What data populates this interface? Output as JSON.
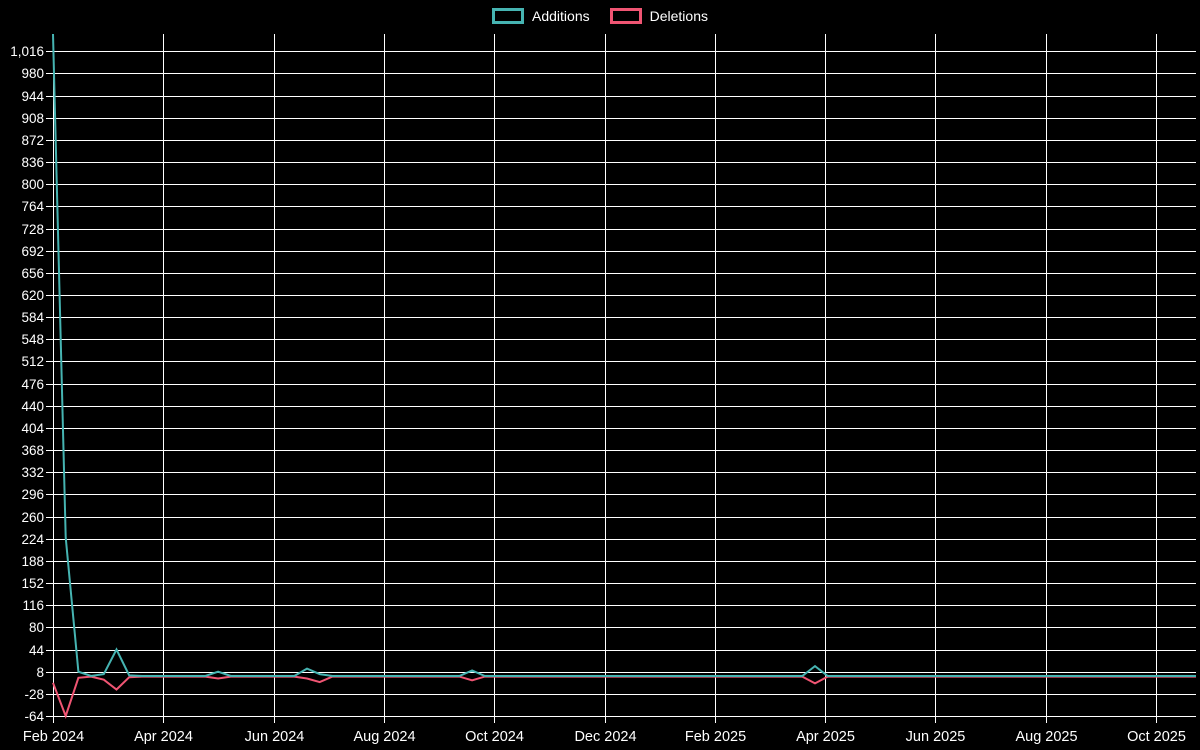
{
  "page": {
    "background": "#000000",
    "text_color": "#ffffff",
    "grid_color": "#ffffff"
  },
  "legend": {
    "position": "top-center",
    "items": [
      {
        "label": "Additions",
        "color": "#46b4b2"
      },
      {
        "label": "Deletions",
        "color": "#f05573"
      }
    ]
  },
  "chart_data": {
    "type": "line",
    "title": "",
    "xlabel": "",
    "ylabel": "",
    "grid": true,
    "legend_position": "top-center",
    "x_unit": "week",
    "x_axis": {
      "tick_labels": [
        "Feb 2024",
        "Apr 2024",
        "Jun 2024",
        "Aug 2024",
        "Oct 2024",
        "Dec 2024",
        "Feb 2025",
        "Apr 2025",
        "Jun 2025",
        "Aug 2025",
        "Oct 2025"
      ]
    },
    "y_axis": {
      "range": [
        -64,
        1044
      ],
      "tick_step": 36,
      "tick_values": [
        1016,
        980,
        944,
        908,
        872,
        836,
        800,
        764,
        728,
        692,
        656,
        620,
        584,
        548,
        512,
        476,
        440,
        404,
        368,
        332,
        296,
        260,
        224,
        188,
        152,
        116,
        80,
        44,
        8,
        -28,
        -64
      ],
      "tick_labels": [
        "1,016",
        "980",
        "944",
        "908",
        "872",
        "836",
        "800",
        "764",
        "728",
        "692",
        "656",
        "620",
        "584",
        "548",
        "512",
        "476",
        "440",
        "404",
        "368",
        "332",
        "296",
        "260",
        "224",
        "188",
        "152",
        "116",
        "80",
        "44",
        "8",
        "-28",
        "-64"
      ]
    },
    "series": [
      {
        "name": "Additions",
        "color": "#46b4b2",
        "values": [
          1044,
          226,
          8,
          1,
          4,
          44,
          2,
          1,
          1,
          1,
          1,
          1,
          1,
          8,
          1,
          1,
          1,
          1,
          1,
          1,
          13,
          4,
          1,
          1,
          1,
          1,
          1,
          1,
          1,
          1,
          1,
          1,
          1,
          10,
          1,
          1,
          1,
          1,
          1,
          1,
          1,
          1,
          1,
          1,
          1,
          1,
          1,
          1,
          1,
          1,
          1,
          1,
          1,
          1,
          1,
          1,
          1,
          1,
          1,
          1,
          17,
          1,
          1,
          1,
          1,
          1,
          1,
          1,
          1,
          1,
          1,
          1,
          1,
          1,
          1,
          1,
          1,
          1,
          1,
          1,
          1,
          1,
          1,
          1,
          1,
          1,
          1,
          1,
          1,
          1,
          1
        ]
      },
      {
        "name": "Deletions",
        "color": "#f05573",
        "values": [
          -10,
          -64,
          -2,
          0,
          -5,
          -21,
          -1,
          0,
          0,
          0,
          0,
          0,
          0,
          -3,
          0,
          0,
          0,
          0,
          0,
          0,
          -3,
          -9,
          0,
          0,
          0,
          0,
          0,
          0,
          0,
          0,
          0,
          0,
          0,
          -6,
          0,
          0,
          0,
          0,
          0,
          0,
          0,
          0,
          0,
          0,
          0,
          0,
          0,
          0,
          0,
          0,
          0,
          0,
          0,
          0,
          0,
          0,
          0,
          0,
          0,
          0,
          -11,
          0,
          0,
          0,
          0,
          0,
          0,
          0,
          0,
          0,
          0,
          0,
          0,
          0,
          0,
          0,
          0,
          0,
          0,
          0,
          0,
          0,
          0,
          0,
          0,
          0,
          0,
          0,
          0,
          0,
          0
        ]
      }
    ]
  }
}
